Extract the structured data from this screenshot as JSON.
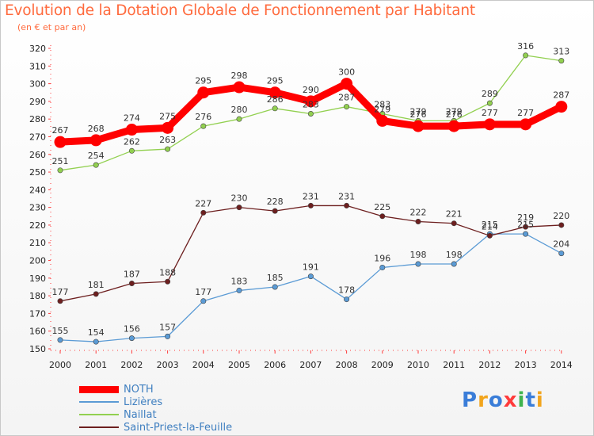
{
  "header": {
    "title": "Evolution de la Dotation Globale de Fonctionnement par Habitant",
    "subtitle": "(en € et par an)"
  },
  "branding": {
    "logo": "Proxiti"
  },
  "chart_data": {
    "type": "line",
    "title": "Evolution de la Dotation Globale de Fonctionnement par Habitant",
    "subtitle": "(en € et par an)",
    "xlabel": "",
    "ylabel": "",
    "x": [
      "2000",
      "2001",
      "2002",
      "2003",
      "2004",
      "2005",
      "2006",
      "2007",
      "2008",
      "2009",
      "2010",
      "2011",
      "2012",
      "2013",
      "2014"
    ],
    "ylim": [
      150,
      320
    ],
    "yticks": [
      150,
      160,
      170,
      180,
      190,
      200,
      210,
      220,
      230,
      240,
      250,
      260,
      270,
      280,
      290,
      300,
      310,
      320
    ],
    "grid": false,
    "legend_position": "bottom-left",
    "series": [
      {
        "name": "NOTH",
        "color": "#ff0000",
        "emphasis": true,
        "values": [
          267,
          268,
          274,
          275,
          295,
          298,
          295,
          290,
          300,
          279,
          276,
          276,
          277,
          277,
          287
        ]
      },
      {
        "name": "Lizières",
        "color": "#5b9bd5",
        "values": [
          155,
          154,
          156,
          157,
          177,
          183,
          185,
          191,
          178,
          196,
          198,
          198,
          215,
          215,
          204
        ]
      },
      {
        "name": "Naillat",
        "color": "#92d050",
        "values": [
          251,
          254,
          262,
          263,
          276,
          280,
          286,
          283,
          287,
          283,
          279,
          279,
          289,
          316,
          313
        ]
      },
      {
        "name": "Saint-Priest-la-Feuille",
        "color": "#6d1f1f",
        "values": [
          177,
          181,
          187,
          188,
          227,
          230,
          228,
          231,
          231,
          225,
          222,
          221,
          214,
          219,
          220
        ]
      }
    ]
  }
}
